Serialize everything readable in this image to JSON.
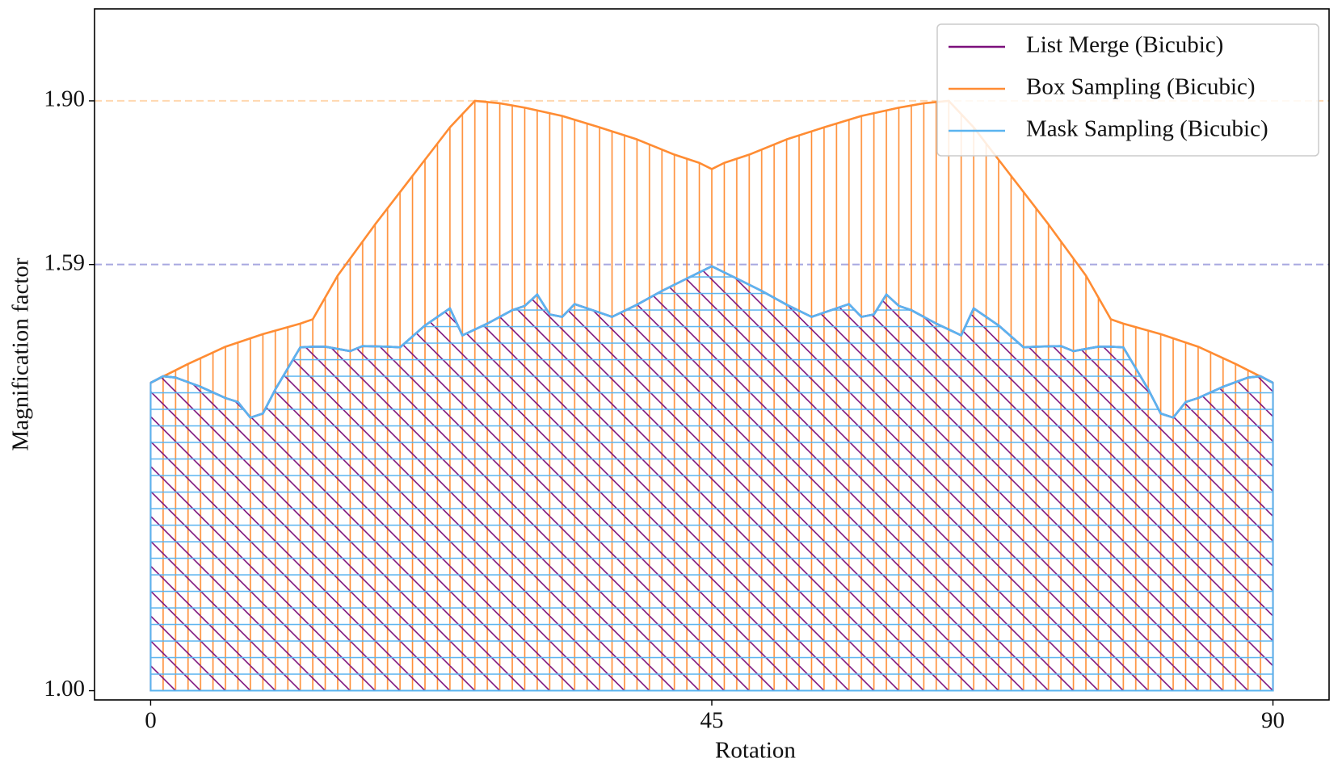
{
  "chart_data": {
    "type": "area",
    "xlabel": "Rotation",
    "ylabel": "Magnification factor",
    "yscale": "log",
    "xlim": [
      -4.5,
      94.5
    ],
    "ylim": [
      0.99,
      2.1
    ],
    "xticks": [
      0,
      45,
      90
    ],
    "yticks": [
      {
        "value": 1.0,
        "label": "1.00"
      },
      {
        "value": 1.59,
        "label": "1.59"
      },
      {
        "value": 1.9,
        "label": "1.90"
      }
    ],
    "legend": "upper right",
    "reference_lines": [
      {
        "y": 1.9,
        "color": "#ffd8b0"
      },
      {
        "y": 1.59,
        "color": "#a8a8e0"
      }
    ],
    "series": [
      {
        "name": "Box Sampling (Bicubic)",
        "color": "#ff8c33",
        "hatch": "|",
        "x": [
          0,
          3,
          6,
          9,
          12,
          13,
          15,
          18,
          21,
          24,
          26,
          28,
          30,
          33,
          36,
          39,
          42,
          44,
          45,
          46,
          48,
          51,
          54,
          57,
          60,
          62,
          64,
          66,
          69,
          72,
          75,
          77,
          78,
          81,
          84,
          87,
          90
        ],
        "values": [
          1.398,
          1.427,
          1.454,
          1.474,
          1.491,
          1.498,
          1.571,
          1.661,
          1.751,
          1.846,
          1.9,
          1.895,
          1.886,
          1.869,
          1.846,
          1.822,
          1.792,
          1.776,
          1.764,
          1.776,
          1.792,
          1.822,
          1.846,
          1.869,
          1.886,
          1.895,
          1.9,
          1.846,
          1.751,
          1.661,
          1.571,
          1.498,
          1.491,
          1.474,
          1.454,
          1.427,
          1.398
        ]
      },
      {
        "name": "List Merge (Bicubic)",
        "color": "#7b0f7b",
        "hatch": "\\",
        "x": [
          0,
          1,
          2,
          4,
          6,
          7,
          8,
          9,
          10,
          12,
          13,
          14,
          16,
          17,
          19,
          20,
          22,
          24,
          25,
          27,
          29,
          30,
          31,
          32,
          33,
          34,
          36,
          37,
          39,
          41,
          43,
          45,
          47,
          49,
          51,
          53,
          54,
          56,
          57,
          58,
          59,
          60,
          61,
          63,
          65,
          66,
          68,
          70,
          71,
          73,
          74,
          76,
          77,
          78,
          80,
          81,
          82,
          83,
          84,
          86,
          88,
          89,
          90
        ],
        "values": [
          1.398,
          1.408,
          1.406,
          1.392,
          1.375,
          1.369,
          1.346,
          1.352,
          1.388,
          1.453,
          1.454,
          1.454,
          1.447,
          1.455,
          1.454,
          1.453,
          1.488,
          1.516,
          1.472,
          1.491,
          1.513,
          1.52,
          1.539,
          1.506,
          1.502,
          1.523,
          1.509,
          1.502,
          1.522,
          1.545,
          1.566,
          1.587,
          1.566,
          1.545,
          1.522,
          1.502,
          1.509,
          1.523,
          1.502,
          1.506,
          1.539,
          1.52,
          1.513,
          1.491,
          1.472,
          1.516,
          1.488,
          1.453,
          1.454,
          1.455,
          1.447,
          1.454,
          1.454,
          1.453,
          1.388,
          1.352,
          1.346,
          1.369,
          1.375,
          1.392,
          1.406,
          1.408,
          1.398
        ]
      },
      {
        "name": "Mask Sampling (Bicubic)",
        "color": "#5ab4f0",
        "hatch": "-",
        "x": [
          0,
          1,
          2,
          4,
          6,
          7,
          8,
          9,
          10,
          12,
          13,
          14,
          16,
          17,
          19,
          20,
          22,
          24,
          25,
          27,
          29,
          30,
          31,
          32,
          33,
          34,
          36,
          37,
          39,
          41,
          43,
          45,
          47,
          49,
          51,
          53,
          54,
          56,
          57,
          58,
          59,
          60,
          61,
          63,
          65,
          66,
          68,
          70,
          71,
          73,
          74,
          76,
          77,
          78,
          80,
          81,
          82,
          83,
          84,
          86,
          88,
          89,
          90
        ],
        "values": [
          1.398,
          1.408,
          1.406,
          1.392,
          1.375,
          1.369,
          1.346,
          1.352,
          1.388,
          1.453,
          1.454,
          1.454,
          1.447,
          1.455,
          1.454,
          1.453,
          1.488,
          1.516,
          1.472,
          1.491,
          1.513,
          1.52,
          1.539,
          1.506,
          1.502,
          1.523,
          1.509,
          1.502,
          1.522,
          1.545,
          1.566,
          1.587,
          1.566,
          1.545,
          1.522,
          1.502,
          1.509,
          1.523,
          1.502,
          1.506,
          1.539,
          1.52,
          1.513,
          1.491,
          1.472,
          1.516,
          1.488,
          1.453,
          1.454,
          1.455,
          1.447,
          1.454,
          1.454,
          1.453,
          1.388,
          1.352,
          1.346,
          1.369,
          1.375,
          1.392,
          1.406,
          1.408,
          1.398
        ]
      }
    ]
  }
}
